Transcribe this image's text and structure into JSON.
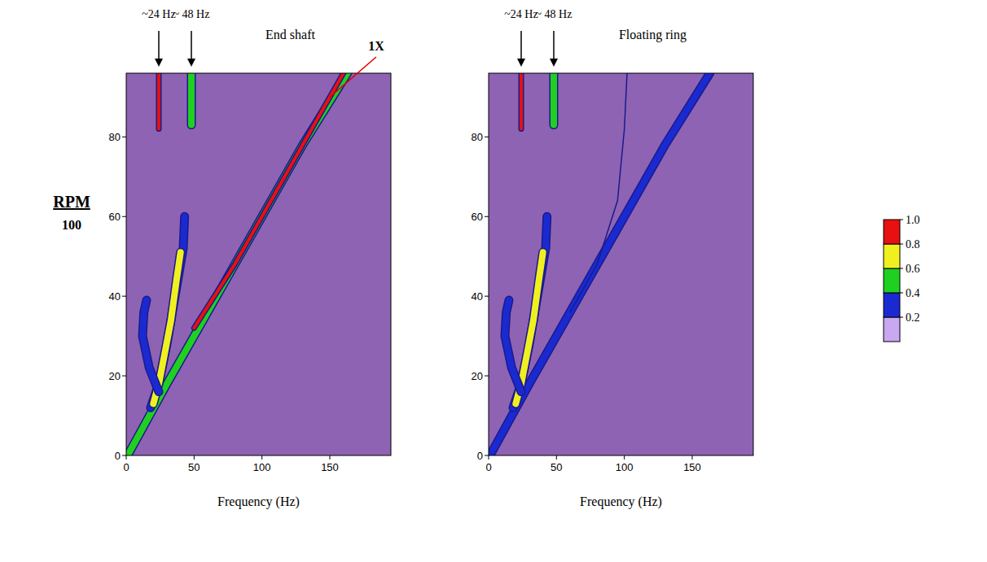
{
  "chart_data": [
    {
      "type": "contour",
      "title": "End shaft",
      "x_label": "Frequency (Hz)",
      "y_label": "RPM",
      "y_scale_label": "100",
      "xlim": [
        0,
        195
      ],
      "ylim": [
        0,
        96
      ],
      "xticks": [
        0,
        50,
        100,
        150
      ],
      "yticks": [
        0,
        20,
        40,
        60,
        80
      ],
      "annotations": [
        {
          "text": "~24 Hz",
          "x": 24
        },
        {
          "text": "~ 48 Hz",
          "x": 48
        },
        {
          "text": "1X",
          "x": 150,
          "y": 90
        }
      ],
      "ridges": [
        {
          "x": [
            1,
            30,
            60,
            100,
            130,
            163
          ],
          "y": [
            0,
            18,
            36,
            60,
            78,
            96
          ],
          "level": 0.5
        },
        {
          "x": [
            50,
            80,
            110,
            140,
            160
          ],
          "y": [
            32,
            48,
            66,
            84,
            96
          ],
          "level": 0.9
        },
        {
          "x": [
            18,
            24,
            30,
            36,
            42,
            43
          ],
          "y": [
            12,
            18,
            28,
            40,
            52,
            60
          ],
          "level": 0.3
        },
        {
          "x": [
            20,
            24,
            28,
            33,
            37,
            40
          ],
          "y": [
            13,
            18,
            25,
            34,
            44,
            51
          ],
          "level": 0.7
        },
        {
          "x": [
            24,
            17,
            12,
            13,
            15
          ],
          "y": [
            16,
            22,
            30,
            36,
            39
          ],
          "level": 0.3
        },
        {
          "x": [
            24,
            24
          ],
          "y": [
            82,
            96
          ],
          "level": 0.9
        },
        {
          "x": [
            48,
            48
          ],
          "y": [
            83,
            96
          ],
          "level": 0.5
        }
      ]
    },
    {
      "type": "contour",
      "title": "Floating ring",
      "x_label": "Frequency (Hz)",
      "xlim": [
        0,
        195
      ],
      "ylim": [
        0,
        96
      ],
      "xticks": [
        0,
        50,
        100,
        150
      ],
      "yticks": [
        0,
        20,
        40,
        60,
        80
      ],
      "annotations": [
        {
          "text": "~24 Hz",
          "x": 24
        },
        {
          "text": "~ 48 Hz",
          "x": 48
        }
      ],
      "ridges": [
        {
          "x": [
            1,
            30,
            60,
            100,
            130,
            163
          ],
          "y": [
            0,
            18,
            36,
            60,
            78,
            96
          ],
          "level": 0.3
        },
        {
          "x": [
            60,
            80,
            95,
            100,
            102
          ],
          "y": [
            36,
            48,
            64,
            82,
            96
          ],
          "level": 0.1
        },
        {
          "x": [
            18,
            24,
            30,
            36,
            42,
            43
          ],
          "y": [
            12,
            18,
            28,
            40,
            52,
            60
          ],
          "level": 0.3
        },
        {
          "x": [
            20,
            24,
            28,
            33,
            37,
            40
          ],
          "y": [
            13,
            18,
            25,
            34,
            44,
            51
          ],
          "level": 0.7
        },
        {
          "x": [
            24,
            17,
            12,
            13,
            15
          ],
          "y": [
            16,
            22,
            30,
            36,
            39
          ],
          "level": 0.3
        },
        {
          "x": [
            24,
            24
          ],
          "y": [
            82,
            96
          ],
          "level": 0.9
        },
        {
          "x": [
            48,
            48
          ],
          "y": [
            83,
            96
          ],
          "level": 0.5
        }
      ],
      "colorbar": {
        "range": [
          0,
          1
        ],
        "ticks": [
          0.2,
          0.4,
          0.6,
          0.8,
          {
            "value": 1,
            "label": "1.0"
          }
        ],
        "colors": [
          "#c8a8f0",
          "#1a2ad0",
          "#20d020",
          "#f0f020",
          "#e81010"
        ]
      }
    }
  ]
}
